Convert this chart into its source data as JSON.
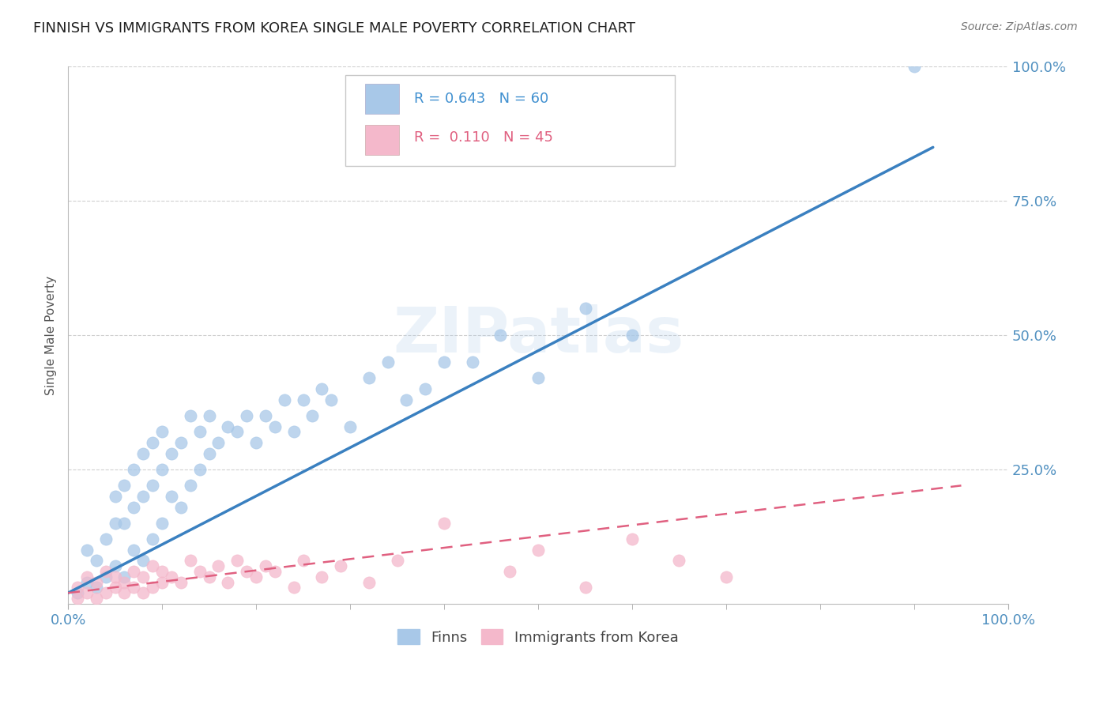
{
  "title": "FINNISH VS IMMIGRANTS FROM KOREA SINGLE MALE POVERTY CORRELATION CHART",
  "source": "Source: ZipAtlas.com",
  "ylabel": "Single Male Poverty",
  "xlim": [
    0,
    1
  ],
  "ylim": [
    0,
    1
  ],
  "xticks": [
    0.0,
    1.0
  ],
  "xtick_labels": [
    "0.0%",
    "100.0%"
  ],
  "yticks": [
    0.0,
    0.25,
    0.5,
    0.75,
    1.0
  ],
  "ytick_labels": [
    "",
    "25.0%",
    "50.0%",
    "75.0%",
    "100.0%"
  ],
  "series1_color": "#a8c8e8",
  "series1_line_color": "#3a80c0",
  "series2_color": "#f4b8cb",
  "series2_line_color": "#e06080",
  "series1_label": "Finns",
  "series2_label": "Immigrants from Korea",
  "background_color": "#ffffff",
  "watermark_text": "ZIPatlas",
  "watermark_color": "#a8c8e8",
  "title_fontsize": 13,
  "grid_color": "#d0d0d0",
  "legend_R1": "R = 0.643   N = 60",
  "legend_R2": "R =  0.110   N = 45",
  "legend_color1": "#4090d0",
  "legend_color2": "#e06080",
  "finns_x": [
    0.01,
    0.02,
    0.02,
    0.03,
    0.03,
    0.04,
    0.04,
    0.05,
    0.05,
    0.05,
    0.06,
    0.06,
    0.06,
    0.07,
    0.07,
    0.07,
    0.08,
    0.08,
    0.08,
    0.09,
    0.09,
    0.09,
    0.1,
    0.1,
    0.1,
    0.11,
    0.11,
    0.12,
    0.12,
    0.13,
    0.13,
    0.14,
    0.14,
    0.15,
    0.15,
    0.16,
    0.17,
    0.18,
    0.19,
    0.2,
    0.21,
    0.22,
    0.23,
    0.24,
    0.25,
    0.26,
    0.27,
    0.28,
    0.3,
    0.32,
    0.34,
    0.36,
    0.38,
    0.4,
    0.43,
    0.46,
    0.5,
    0.55,
    0.6,
    0.9
  ],
  "finns_y": [
    0.02,
    0.04,
    0.1,
    0.03,
    0.08,
    0.05,
    0.12,
    0.07,
    0.15,
    0.2,
    0.05,
    0.15,
    0.22,
    0.1,
    0.18,
    0.25,
    0.08,
    0.2,
    0.28,
    0.12,
    0.22,
    0.3,
    0.15,
    0.25,
    0.32,
    0.2,
    0.28,
    0.18,
    0.3,
    0.22,
    0.35,
    0.25,
    0.32,
    0.28,
    0.35,
    0.3,
    0.33,
    0.32,
    0.35,
    0.3,
    0.35,
    0.33,
    0.38,
    0.32,
    0.38,
    0.35,
    0.4,
    0.38,
    0.33,
    0.42,
    0.45,
    0.38,
    0.4,
    0.45,
    0.45,
    0.5,
    0.42,
    0.55,
    0.5,
    1.0
  ],
  "korea_x": [
    0.01,
    0.01,
    0.02,
    0.02,
    0.03,
    0.03,
    0.04,
    0.04,
    0.05,
    0.05,
    0.06,
    0.06,
    0.07,
    0.07,
    0.08,
    0.08,
    0.09,
    0.09,
    0.1,
    0.1,
    0.11,
    0.12,
    0.13,
    0.14,
    0.15,
    0.16,
    0.17,
    0.18,
    0.19,
    0.2,
    0.21,
    0.22,
    0.24,
    0.25,
    0.27,
    0.29,
    0.32,
    0.35,
    0.4,
    0.47,
    0.5,
    0.55,
    0.6,
    0.65,
    0.7
  ],
  "korea_y": [
    0.01,
    0.03,
    0.02,
    0.05,
    0.01,
    0.04,
    0.02,
    0.06,
    0.03,
    0.05,
    0.02,
    0.04,
    0.03,
    0.06,
    0.02,
    0.05,
    0.03,
    0.07,
    0.04,
    0.06,
    0.05,
    0.04,
    0.08,
    0.06,
    0.05,
    0.07,
    0.04,
    0.08,
    0.06,
    0.05,
    0.07,
    0.06,
    0.03,
    0.08,
    0.05,
    0.07,
    0.04,
    0.08,
    0.15,
    0.06,
    0.1,
    0.03,
    0.12,
    0.08,
    0.05
  ],
  "finns_line_x": [
    0.0,
    0.92
  ],
  "finns_line_y": [
    0.02,
    0.85
  ],
  "korea_line_x": [
    0.0,
    0.95
  ],
  "korea_line_y": [
    0.02,
    0.22
  ]
}
